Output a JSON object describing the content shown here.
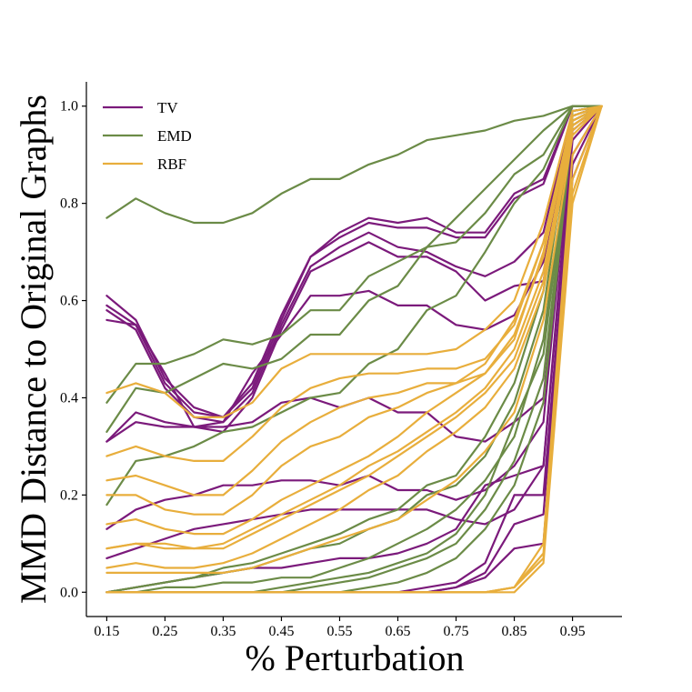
{
  "chart_data": {
    "type": "line",
    "title": "",
    "xlabel": "% Perturbation",
    "ylabel": "MMD Distance to Original Graphs",
    "xlim": [
      0.115,
      1.035
    ],
    "ylim": [
      -0.05,
      1.05
    ],
    "x": [
      0.15,
      0.2,
      0.25,
      0.3,
      0.35,
      0.4,
      0.45,
      0.5,
      0.55,
      0.6,
      0.65,
      0.7,
      0.75,
      0.8,
      0.85,
      0.9,
      0.95,
      1.0
    ],
    "x_ticks": [
      0.15,
      0.25,
      0.35,
      0.45,
      0.55,
      0.65,
      0.75,
      0.85,
      0.95
    ],
    "x_tick_labels": [
      "0.15",
      "0.25",
      "0.35",
      "0.45",
      "0.55",
      "0.65",
      "0.75",
      "0.85",
      "0.95"
    ],
    "y_ticks": [
      0.0,
      0.2,
      0.4,
      0.6,
      0.8,
      1.0
    ],
    "y_tick_labels": [
      "0.0",
      "0.2",
      "0.4",
      "0.6",
      "0.8",
      "1.0"
    ],
    "legend": {
      "position": "top-left",
      "entries": [
        {
          "label": "TV",
          "color": "#7b1a7b"
        },
        {
          "label": "EMD",
          "color": "#6b8b47"
        },
        {
          "label": "RBF",
          "color": "#e8ae3c"
        }
      ]
    },
    "series": [
      {
        "name": "TV",
        "color": "#7b1a7b",
        "values": [
          0.61,
          0.56,
          0.44,
          0.38,
          0.36,
          0.43,
          0.57,
          0.69,
          0.74,
          0.77,
          0.76,
          0.77,
          0.74,
          0.74,
          0.82,
          0.85,
          1.0,
          1.0
        ]
      },
      {
        "name": "TV",
        "color": "#7b1a7b",
        "values": [
          0.59,
          0.55,
          0.43,
          0.37,
          0.36,
          0.42,
          0.56,
          0.69,
          0.73,
          0.76,
          0.75,
          0.75,
          0.73,
          0.73,
          0.81,
          0.84,
          1.0,
          1.0
        ]
      },
      {
        "name": "TV",
        "color": "#7b1a7b",
        "values": [
          0.58,
          0.54,
          0.42,
          0.36,
          0.35,
          0.41,
          0.55,
          0.67,
          0.71,
          0.74,
          0.71,
          0.7,
          0.67,
          0.65,
          0.68,
          0.74,
          0.99,
          1.0
        ]
      },
      {
        "name": "TV",
        "color": "#7b1a7b",
        "values": [
          0.56,
          0.55,
          0.45,
          0.34,
          0.33,
          0.4,
          0.54,
          0.66,
          0.69,
          0.72,
          0.69,
          0.69,
          0.66,
          0.6,
          0.63,
          0.64,
          0.98,
          1.0
        ]
      },
      {
        "name": "TV",
        "color": "#7b1a7b",
        "values": [
          0.31,
          0.37,
          0.35,
          0.34,
          0.35,
          0.45,
          0.53,
          0.61,
          0.61,
          0.62,
          0.59,
          0.59,
          0.55,
          0.54,
          0.57,
          0.68,
          0.98,
          1.0
        ]
      },
      {
        "name": "TV",
        "color": "#7b1a7b",
        "values": [
          0.31,
          0.35,
          0.34,
          0.34,
          0.34,
          0.35,
          0.39,
          0.4,
          0.38,
          0.4,
          0.37,
          0.37,
          0.32,
          0.31,
          0.35,
          0.4,
          0.97,
          1.0
        ]
      },
      {
        "name": "TV",
        "color": "#7b1a7b",
        "values": [
          0.13,
          0.17,
          0.19,
          0.2,
          0.22,
          0.22,
          0.23,
          0.23,
          0.22,
          0.24,
          0.21,
          0.21,
          0.19,
          0.21,
          0.26,
          0.35,
          0.96,
          1.0
        ]
      },
      {
        "name": "TV",
        "color": "#7b1a7b",
        "values": [
          0.07,
          0.09,
          0.11,
          0.13,
          0.14,
          0.15,
          0.16,
          0.17,
          0.17,
          0.17,
          0.17,
          0.17,
          0.15,
          0.14,
          0.17,
          0.26,
          0.95,
          1.0
        ]
      },
      {
        "name": "TV",
        "color": "#7b1a7b",
        "values": [
          0.0,
          0.01,
          0.02,
          0.03,
          0.04,
          0.05,
          0.05,
          0.06,
          0.07,
          0.07,
          0.08,
          0.1,
          0.13,
          0.22,
          0.24,
          0.26,
          0.93,
          1.0
        ]
      },
      {
        "name": "TV",
        "color": "#7b1a7b",
        "values": [
          0.0,
          0.0,
          0.0,
          0.0,
          0.0,
          0.0,
          0.0,
          0.0,
          0.0,
          0.0,
          0.0,
          0.01,
          0.02,
          0.06,
          0.2,
          0.2,
          0.9,
          1.0
        ]
      },
      {
        "name": "TV",
        "color": "#7b1a7b",
        "values": [
          0.0,
          0.0,
          0.0,
          0.0,
          0.0,
          0.0,
          0.0,
          0.0,
          0.0,
          0.0,
          0.0,
          0.0,
          0.01,
          0.04,
          0.14,
          0.16,
          0.88,
          1.0
        ]
      },
      {
        "name": "TV",
        "color": "#7b1a7b",
        "values": [
          0.0,
          0.0,
          0.0,
          0.0,
          0.0,
          0.0,
          0.0,
          0.0,
          0.0,
          0.0,
          0.0,
          0.0,
          0.01,
          0.03,
          0.09,
          0.1,
          0.85,
          1.0
        ]
      },
      {
        "name": "EMD",
        "color": "#6b8b47",
        "values": [
          0.77,
          0.81,
          0.78,
          0.76,
          0.76,
          0.78,
          0.82,
          0.85,
          0.85,
          0.88,
          0.9,
          0.93,
          0.94,
          0.95,
          0.97,
          0.98,
          1.0,
          1.0
        ]
      },
      {
        "name": "EMD",
        "color": "#6b8b47",
        "values": [
          0.39,
          0.47,
          0.47,
          0.49,
          0.52,
          0.51,
          0.53,
          0.58,
          0.58,
          0.65,
          0.68,
          0.71,
          0.72,
          0.78,
          0.86,
          0.9,
          1.0,
          1.0
        ]
      },
      {
        "name": "EMD",
        "color": "#6b8b47",
        "values": [
          0.33,
          0.42,
          0.41,
          0.44,
          0.47,
          0.46,
          0.48,
          0.53,
          0.53,
          0.6,
          0.63,
          0.71,
          0.77,
          0.83,
          0.89,
          0.95,
          1.0,
          1.0
        ]
      },
      {
        "name": "EMD",
        "color": "#6b8b47",
        "values": [
          0.18,
          0.27,
          0.28,
          0.3,
          0.33,
          0.34,
          0.37,
          0.4,
          0.41,
          0.47,
          0.5,
          0.58,
          0.61,
          0.7,
          0.8,
          0.87,
          1.0,
          1.0
        ]
      },
      {
        "name": "EMD",
        "color": "#6b8b47",
        "values": [
          0.0,
          0.01,
          0.02,
          0.03,
          0.05,
          0.06,
          0.08,
          0.1,
          0.12,
          0.15,
          0.17,
          0.22,
          0.24,
          0.32,
          0.43,
          0.62,
          0.99,
          1.0
        ]
      },
      {
        "name": "EMD",
        "color": "#6b8b47",
        "values": [
          0.0,
          0.01,
          0.02,
          0.03,
          0.04,
          0.05,
          0.07,
          0.09,
          0.1,
          0.13,
          0.15,
          0.2,
          0.22,
          0.28,
          0.39,
          0.58,
          0.99,
          1.0
        ]
      },
      {
        "name": "EMD",
        "color": "#6b8b47",
        "values": [
          0.0,
          0.0,
          0.01,
          0.01,
          0.02,
          0.02,
          0.03,
          0.03,
          0.05,
          0.07,
          0.1,
          0.13,
          0.17,
          0.23,
          0.32,
          0.52,
          0.98,
          1.0
        ]
      },
      {
        "name": "EMD",
        "color": "#6b8b47",
        "values": [
          0.0,
          0.0,
          0.0,
          0.0,
          0.0,
          0.0,
          0.01,
          0.02,
          0.03,
          0.04,
          0.06,
          0.08,
          0.12,
          0.2,
          0.35,
          0.49,
          0.97,
          1.0
        ]
      },
      {
        "name": "EMD",
        "color": "#6b8b47",
        "values": [
          0.0,
          0.0,
          0.0,
          0.0,
          0.0,
          0.0,
          0.0,
          0.01,
          0.02,
          0.03,
          0.05,
          0.07,
          0.1,
          0.17,
          0.27,
          0.44,
          0.97,
          1.0
        ]
      },
      {
        "name": "EMD",
        "color": "#6b8b47",
        "values": [
          0.0,
          0.0,
          0.0,
          0.0,
          0.0,
          0.0,
          0.0,
          0.0,
          0.0,
          0.01,
          0.02,
          0.04,
          0.07,
          0.13,
          0.22,
          0.39,
          0.96,
          1.0
        ]
      },
      {
        "name": "RBF",
        "color": "#e8ae3c",
        "values": [
          0.41,
          0.43,
          0.41,
          0.36,
          0.36,
          0.39,
          0.46,
          0.49,
          0.49,
          0.49,
          0.49,
          0.49,
          0.5,
          0.54,
          0.6,
          0.76,
          0.99,
          1.0
        ]
      },
      {
        "name": "RBF",
        "color": "#e8ae3c",
        "values": [
          0.28,
          0.3,
          0.28,
          0.27,
          0.27,
          0.32,
          0.38,
          0.42,
          0.44,
          0.45,
          0.45,
          0.46,
          0.46,
          0.48,
          0.55,
          0.72,
          0.98,
          1.0
        ]
      },
      {
        "name": "RBF",
        "color": "#e8ae3c",
        "values": [
          0.23,
          0.24,
          0.22,
          0.2,
          0.2,
          0.25,
          0.31,
          0.35,
          0.38,
          0.4,
          0.41,
          0.43,
          0.43,
          0.45,
          0.52,
          0.7,
          0.98,
          1.0
        ]
      },
      {
        "name": "RBF",
        "color": "#e8ae3c",
        "values": [
          0.2,
          0.2,
          0.17,
          0.16,
          0.16,
          0.2,
          0.26,
          0.3,
          0.32,
          0.36,
          0.38,
          0.41,
          0.43,
          0.47,
          0.56,
          0.72,
          0.97,
          1.0
        ]
      },
      {
        "name": "RBF",
        "color": "#e8ae3c",
        "values": [
          0.14,
          0.15,
          0.13,
          0.12,
          0.12,
          0.15,
          0.19,
          0.22,
          0.25,
          0.28,
          0.32,
          0.37,
          0.41,
          0.45,
          0.53,
          0.69,
          0.97,
          1.0
        ]
      },
      {
        "name": "RBF",
        "color": "#e8ae3c",
        "values": [
          0.09,
          0.1,
          0.1,
          0.09,
          0.1,
          0.13,
          0.16,
          0.19,
          0.22,
          0.26,
          0.29,
          0.33,
          0.37,
          0.42,
          0.5,
          0.66,
          0.96,
          1.0
        ]
      },
      {
        "name": "RBF",
        "color": "#e8ae3c",
        "values": [
          0.09,
          0.1,
          0.09,
          0.09,
          0.09,
          0.12,
          0.15,
          0.18,
          0.21,
          0.24,
          0.28,
          0.32,
          0.36,
          0.41,
          0.48,
          0.64,
          0.96,
          1.0
        ]
      },
      {
        "name": "RBF",
        "color": "#e8ae3c",
        "values": [
          0.05,
          0.06,
          0.05,
          0.05,
          0.06,
          0.08,
          0.11,
          0.14,
          0.17,
          0.21,
          0.24,
          0.29,
          0.33,
          0.38,
          0.46,
          0.62,
          0.95,
          1.0
        ]
      },
      {
        "name": "RBF",
        "color": "#e8ae3c",
        "values": [
          0.04,
          0.04,
          0.04,
          0.04,
          0.04,
          0.05,
          0.07,
          0.09,
          0.11,
          0.13,
          0.15,
          0.19,
          0.23,
          0.29,
          0.37,
          0.56,
          0.94,
          1.0
        ]
      },
      {
        "name": "RBF",
        "color": "#e8ae3c",
        "values": [
          0.0,
          0.0,
          0.0,
          0.0,
          0.0,
          0.0,
          0.0,
          0.0,
          0.0,
          0.0,
          0.0,
          0.0,
          0.0,
          0.0,
          0.01,
          0.1,
          0.9,
          1.0
        ]
      },
      {
        "name": "RBF",
        "color": "#e8ae3c",
        "values": [
          0.0,
          0.0,
          0.0,
          0.0,
          0.0,
          0.0,
          0.0,
          0.0,
          0.0,
          0.0,
          0.0,
          0.0,
          0.0,
          0.0,
          0.01,
          0.08,
          0.85,
          1.0
        ]
      },
      {
        "name": "RBF",
        "color": "#e8ae3c",
        "values": [
          0.0,
          0.0,
          0.0,
          0.0,
          0.0,
          0.0,
          0.0,
          0.0,
          0.0,
          0.0,
          0.0,
          0.0,
          0.0,
          0.0,
          0.01,
          0.07,
          0.82,
          1.0
        ]
      },
      {
        "name": "RBF",
        "color": "#e8ae3c",
        "values": [
          0.0,
          0.0,
          0.0,
          0.0,
          0.0,
          0.0,
          0.0,
          0.0,
          0.0,
          0.0,
          0.0,
          0.0,
          0.0,
          0.0,
          0.0,
          0.06,
          0.8,
          1.0
        ]
      }
    ]
  }
}
